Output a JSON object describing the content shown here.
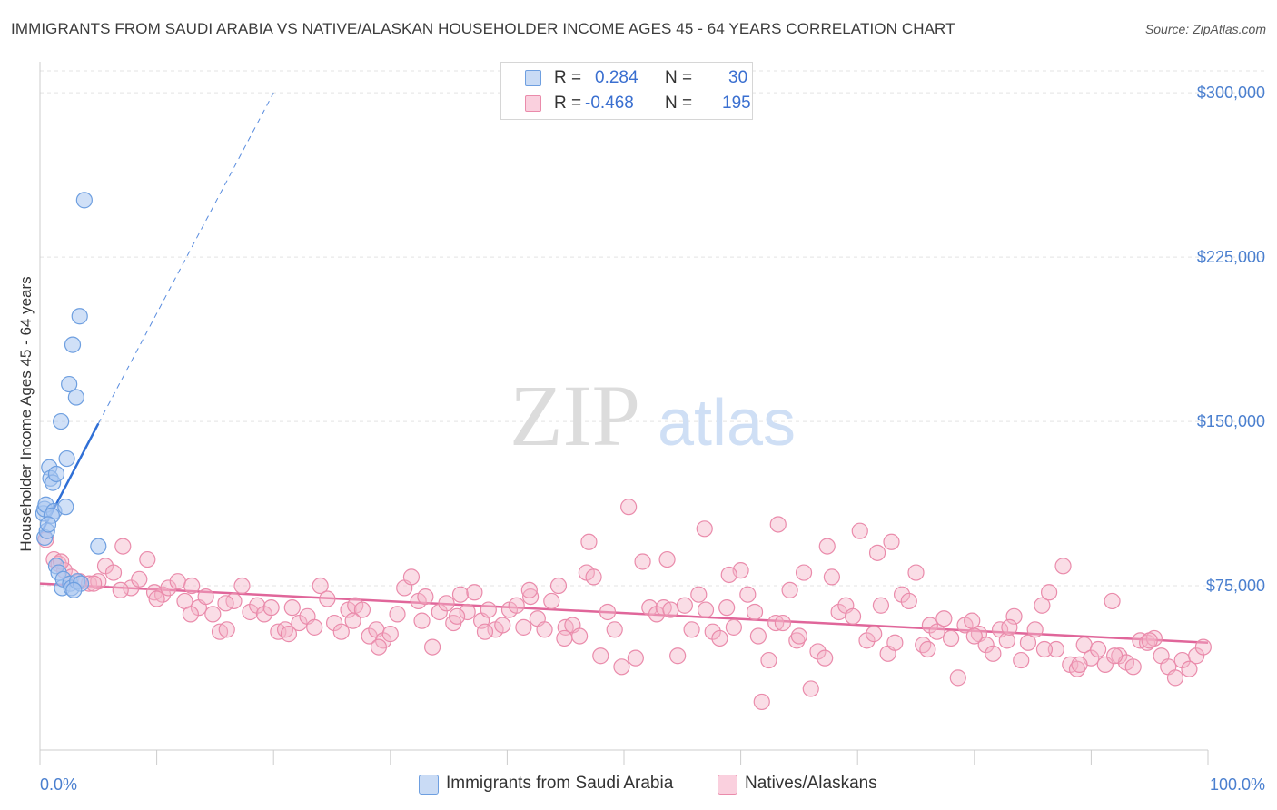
{
  "header": {
    "title": "IMMIGRANTS FROM SAUDI ARABIA VS NATIVE/ALASKAN HOUSEHOLDER INCOME AGES 45 - 64 YEARS CORRELATION CHART",
    "source": "Source: ZipAtlas.com"
  },
  "watermark": {
    "zip": "ZIP",
    "atlas": "atlas"
  },
  "legend": {
    "rows": [
      {
        "r_label": "R =",
        "r_value": "0.284",
        "n_label": "N =",
        "n_value": "30",
        "color": "#a9c6f0"
      },
      {
        "r_label": "R =",
        "r_value": "-0.468",
        "n_label": "N =",
        "n_value": "195",
        "color": "#f5b3c8"
      }
    ]
  },
  "bottom_legend": {
    "series1": "Immigrants from Saudi Arabia",
    "series2": "Natives/Alaskans"
  },
  "colors": {
    "blue_fill": "#a9c6f0",
    "blue_stroke": "#6e9fe0",
    "blue_line": "#2f6fd6",
    "pink_fill": "#f5b3c8",
    "pink_stroke": "#ea8bab",
    "pink_line": "#e0669a",
    "grid": "#e3e3e3",
    "axis_text": "#4a7fcf"
  },
  "chart_data": {
    "type": "scatter",
    "title": "IMMIGRANTS FROM SAUDI ARABIA VS NATIVE/ALASKAN HOUSEHOLDER INCOME AGES 45 - 64 YEARS CORRELATION CHART",
    "xlabel": "",
    "ylabel": "Householder Income Ages 45 - 64 years",
    "xlim": [
      0,
      100
    ],
    "ylim": [
      0,
      310000
    ],
    "x_tick_labels": [
      "0.0%",
      "100.0%"
    ],
    "y_ticks": [
      75000,
      150000,
      225000,
      300000
    ],
    "y_tick_labels": [
      "$75,000",
      "$150,000",
      "$225,000",
      "$300,000"
    ],
    "grid": true,
    "legend_position": "top-center",
    "series": [
      {
        "name": "Immigrants from Saudi Arabia",
        "color": "#a9c6f0",
        "points": [
          [
            0.3,
            108000
          ],
          [
            0.4,
            110000
          ],
          [
            0.4,
            97000
          ],
          [
            0.5,
            112000
          ],
          [
            0.6,
            100000
          ],
          [
            0.8,
            129000
          ],
          [
            0.9,
            124000
          ],
          [
            1.1,
            122000
          ],
          [
            1.2,
            109000
          ],
          [
            1.4,
            126000
          ],
          [
            1.4,
            84000
          ],
          [
            1.6,
            81000
          ],
          [
            1.8,
            150000
          ],
          [
            1.9,
            74000
          ],
          [
            2.0,
            78000
          ],
          [
            2.2,
            111000
          ],
          [
            2.3,
            133000
          ],
          [
            2.5,
            167000
          ],
          [
            2.6,
            76000
          ],
          [
            2.7,
            74000
          ],
          [
            2.8,
            185000
          ],
          [
            3.1,
            161000
          ],
          [
            3.2,
            77000
          ],
          [
            3.4,
            198000
          ],
          [
            3.5,
            76000
          ],
          [
            3.8,
            251000
          ],
          [
            5.0,
            93000
          ],
          [
            1.0,
            107000
          ],
          [
            2.9,
            73000
          ],
          [
            0.7,
            103000
          ]
        ],
        "trendline": {
          "x0": 0,
          "y0": 98000,
          "x1": 5,
          "y1": 149000,
          "dashed_to": {
            "x": 20,
            "y": 300000
          }
        }
      },
      {
        "name": "Natives/Alaskans",
        "color": "#f5b3c8",
        "points": [
          [
            0.5,
            96000
          ],
          [
            1.2,
            87000
          ],
          [
            1.6,
            85000
          ],
          [
            2.1,
            82000
          ],
          [
            2.7,
            79000
          ],
          [
            3.4,
            77000
          ],
          [
            4.2,
            76000
          ],
          [
            5.0,
            77000
          ],
          [
            5.6,
            84000
          ],
          [
            6.3,
            81000
          ],
          [
            7.1,
            93000
          ],
          [
            7.8,
            74000
          ],
          [
            8.5,
            78000
          ],
          [
            9.2,
            87000
          ],
          [
            9.8,
            72000
          ],
          [
            10.5,
            71000
          ],
          [
            11.0,
            74000
          ],
          [
            11.8,
            77000
          ],
          [
            12.4,
            68000
          ],
          [
            13.0,
            75000
          ],
          [
            13.6,
            65000
          ],
          [
            14.2,
            70000
          ],
          [
            14.8,
            62000
          ],
          [
            15.4,
            54000
          ],
          [
            16.0,
            55000
          ],
          [
            16.6,
            68000
          ],
          [
            17.3,
            75000
          ],
          [
            18.0,
            63000
          ],
          [
            18.6,
            66000
          ],
          [
            19.2,
            62000
          ],
          [
            19.8,
            65000
          ],
          [
            20.4,
            54000
          ],
          [
            21.0,
            55000
          ],
          [
            21.6,
            65000
          ],
          [
            22.2,
            58000
          ],
          [
            22.9,
            61000
          ],
          [
            23.5,
            56000
          ],
          [
            24.0,
            75000
          ],
          [
            24.6,
            69000
          ],
          [
            25.2,
            58000
          ],
          [
            25.8,
            54000
          ],
          [
            26.4,
            64000
          ],
          [
            27.0,
            66000
          ],
          [
            27.6,
            64000
          ],
          [
            28.2,
            52000
          ],
          [
            28.8,
            55000
          ],
          [
            29.4,
            50000
          ],
          [
            30.0,
            53000
          ],
          [
            30.6,
            62000
          ],
          [
            31.2,
            74000
          ],
          [
            31.8,
            79000
          ],
          [
            32.4,
            68000
          ],
          [
            33.0,
            70000
          ],
          [
            33.6,
            47000
          ],
          [
            34.2,
            63000
          ],
          [
            34.8,
            67000
          ],
          [
            35.4,
            58000
          ],
          [
            36.0,
            71000
          ],
          [
            36.6,
            63000
          ],
          [
            37.2,
            72000
          ],
          [
            37.8,
            59000
          ],
          [
            38.4,
            64000
          ],
          [
            39.0,
            55000
          ],
          [
            39.6,
            57000
          ],
          [
            40.2,
            64000
          ],
          [
            40.8,
            66000
          ],
          [
            41.4,
            56000
          ],
          [
            42.0,
            70000
          ],
          [
            42.6,
            60000
          ],
          [
            43.2,
            55000
          ],
          [
            43.8,
            68000
          ],
          [
            44.4,
            75000
          ],
          [
            45.0,
            56000
          ],
          [
            45.6,
            57000
          ],
          [
            46.2,
            52000
          ],
          [
            46.8,
            81000
          ],
          [
            47.4,
            79000
          ],
          [
            48.0,
            43000
          ],
          [
            48.6,
            63000
          ],
          [
            49.2,
            55000
          ],
          [
            49.8,
            38000
          ],
          [
            50.4,
            111000
          ],
          [
            51.0,
            42000
          ],
          [
            51.6,
            86000
          ],
          [
            52.2,
            65000
          ],
          [
            52.8,
            62000
          ],
          [
            53.4,
            65000
          ],
          [
            54.0,
            64000
          ],
          [
            54.6,
            43000
          ],
          [
            55.2,
            66000
          ],
          [
            55.8,
            55000
          ],
          [
            56.4,
            71000
          ],
          [
            57.0,
            64000
          ],
          [
            57.6,
            54000
          ],
          [
            58.2,
            51000
          ],
          [
            58.8,
            65000
          ],
          [
            59.4,
            56000
          ],
          [
            60.0,
            82000
          ],
          [
            60.6,
            71000
          ],
          [
            61.2,
            63000
          ],
          [
            61.8,
            22000
          ],
          [
            62.4,
            41000
          ],
          [
            63.0,
            58000
          ],
          [
            63.6,
            58000
          ],
          [
            64.2,
            73000
          ],
          [
            64.8,
            50000
          ],
          [
            65.4,
            81000
          ],
          [
            66.0,
            28000
          ],
          [
            66.6,
            45000
          ],
          [
            67.2,
            42000
          ],
          [
            67.8,
            79000
          ],
          [
            68.4,
            63000
          ],
          [
            69.0,
            66000
          ],
          [
            69.6,
            61000
          ],
          [
            70.2,
            100000
          ],
          [
            70.8,
            50000
          ],
          [
            71.4,
            53000
          ],
          [
            72.0,
            66000
          ],
          [
            72.6,
            44000
          ],
          [
            73.2,
            49000
          ],
          [
            73.8,
            71000
          ],
          [
            74.4,
            68000
          ],
          [
            75.0,
            81000
          ],
          [
            75.6,
            48000
          ],
          [
            76.2,
            57000
          ],
          [
            76.8,
            54000
          ],
          [
            77.4,
            60000
          ],
          [
            78.0,
            51000
          ],
          [
            78.6,
            33000
          ],
          [
            79.2,
            57000
          ],
          [
            79.8,
            59000
          ],
          [
            80.4,
            53000
          ],
          [
            81.0,
            48000
          ],
          [
            81.6,
            44000
          ],
          [
            82.2,
            55000
          ],
          [
            82.8,
            50000
          ],
          [
            83.4,
            61000
          ],
          [
            84.0,
            41000
          ],
          [
            84.6,
            49000
          ],
          [
            85.2,
            55000
          ],
          [
            85.8,
            66000
          ],
          [
            86.4,
            72000
          ],
          [
            87.0,
            46000
          ],
          [
            87.6,
            84000
          ],
          [
            88.2,
            39000
          ],
          [
            88.8,
            37000
          ],
          [
            89.4,
            48000
          ],
          [
            90.0,
            42000
          ],
          [
            90.6,
            46000
          ],
          [
            91.2,
            39000
          ],
          [
            91.8,
            68000
          ],
          [
            92.4,
            43000
          ],
          [
            93.0,
            40000
          ],
          [
            93.6,
            38000
          ],
          [
            94.2,
            50000
          ],
          [
            94.8,
            49000
          ],
          [
            95.4,
            51000
          ],
          [
            96.0,
            43000
          ],
          [
            96.6,
            38000
          ],
          [
            97.2,
            33000
          ],
          [
            97.8,
            41000
          ],
          [
            98.4,
            37000
          ],
          [
            99.0,
            43000
          ],
          [
            99.6,
            47000
          ],
          [
            1.8,
            86000
          ],
          [
            4.6,
            76000
          ],
          [
            6.9,
            73000
          ],
          [
            10.0,
            69000
          ],
          [
            12.9,
            62000
          ],
          [
            15.9,
            67000
          ],
          [
            21.3,
            53000
          ],
          [
            26.8,
            59000
          ],
          [
            29.0,
            47000
          ],
          [
            32.7,
            59000
          ],
          [
            35.7,
            61000
          ],
          [
            38.1,
            54000
          ],
          [
            41.9,
            73000
          ],
          [
            44.9,
            51000
          ],
          [
            47.0,
            95000
          ],
          [
            53.7,
            87000
          ],
          [
            56.9,
            101000
          ],
          [
            59.0,
            80000
          ],
          [
            61.5,
            52000
          ],
          [
            63.2,
            103000
          ],
          [
            65.0,
            52000
          ],
          [
            67.4,
            93000
          ],
          [
            71.7,
            90000
          ],
          [
            72.9,
            95000
          ],
          [
            76.0,
            46000
          ],
          [
            80.0,
            52000
          ],
          [
            83.0,
            56000
          ],
          [
            86.0,
            46000
          ],
          [
            89.0,
            39000
          ],
          [
            92.0,
            43000
          ],
          [
            95.0,
            50000
          ]
        ],
        "trendline": {
          "x0": 0,
          "y0": 76000,
          "x1": 100,
          "y1": 49000
        }
      }
    ]
  }
}
